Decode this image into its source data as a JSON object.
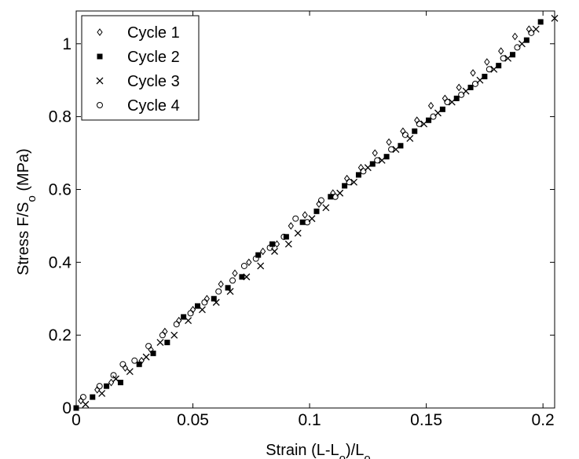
{
  "chart_data": {
    "type": "scatter",
    "xlabel": "Strain (L-L",
    "xlabel_sub1": "o",
    "xlabel_mid": ")/L",
    "xlabel_sub2": "o",
    "ylabel": "Stress F/S",
    "ylabel_sub": "o",
    "ylabel_unit": " (MPa)",
    "xlim": [
      0,
      0.205
    ],
    "ylim": [
      0,
      1.09
    ],
    "x_ticks": [
      0,
      0.05,
      0.1,
      0.15,
      0.2
    ],
    "x_tick_labels": [
      "0",
      "0.05",
      "0.1",
      "0.15",
      "0.2"
    ],
    "y_ticks": [
      0,
      0.2,
      0.4,
      0.6,
      0.8,
      1
    ],
    "y_tick_labels": [
      "0",
      "0.2",
      "0.4",
      "0.6",
      "0.8",
      "1"
    ],
    "grid": false,
    "legend_position": "top-left",
    "series": [
      {
        "name": "Cycle 1",
        "marker": "diamond-open",
        "points": [
          [
            0.002,
            0.02
          ],
          [
            0.009,
            0.05
          ],
          [
            0.015,
            0.07
          ],
          [
            0.021,
            0.11
          ],
          [
            0.028,
            0.13
          ],
          [
            0.032,
            0.16
          ],
          [
            0.038,
            0.21
          ],
          [
            0.044,
            0.24
          ],
          [
            0.05,
            0.27
          ],
          [
            0.056,
            0.3
          ],
          [
            0.062,
            0.34
          ],
          [
            0.068,
            0.37
          ],
          [
            0.074,
            0.4
          ],
          [
            0.08,
            0.43
          ],
          [
            0.086,
            0.45
          ],
          [
            0.092,
            0.5
          ],
          [
            0.098,
            0.53
          ],
          [
            0.104,
            0.56
          ],
          [
            0.11,
            0.59
          ],
          [
            0.116,
            0.63
          ],
          [
            0.122,
            0.66
          ],
          [
            0.128,
            0.7
          ],
          [
            0.134,
            0.73
          ],
          [
            0.14,
            0.76
          ],
          [
            0.146,
            0.79
          ],
          [
            0.152,
            0.83
          ],
          [
            0.158,
            0.85
          ],
          [
            0.164,
            0.88
          ],
          [
            0.17,
            0.92
          ],
          [
            0.176,
            0.95
          ],
          [
            0.182,
            0.98
          ],
          [
            0.188,
            1.02
          ],
          [
            0.194,
            1.04
          ]
        ]
      },
      {
        "name": "Cycle 2",
        "marker": "square-filled",
        "points": [
          [
            0,
            0
          ],
          [
            0.007,
            0.03
          ],
          [
            0.013,
            0.06
          ],
          [
            0.019,
            0.07
          ],
          [
            0.027,
            0.12
          ],
          [
            0.033,
            0.15
          ],
          [
            0.039,
            0.18
          ],
          [
            0.046,
            0.25
          ],
          [
            0.052,
            0.28
          ],
          [
            0.059,
            0.3
          ],
          [
            0.065,
            0.33
          ],
          [
            0.071,
            0.36
          ],
          [
            0.078,
            0.42
          ],
          [
            0.084,
            0.45
          ],
          [
            0.09,
            0.47
          ],
          [
            0.097,
            0.51
          ],
          [
            0.103,
            0.54
          ],
          [
            0.109,
            0.58
          ],
          [
            0.115,
            0.61
          ],
          [
            0.121,
            0.64
          ],
          [
            0.127,
            0.67
          ],
          [
            0.133,
            0.69
          ],
          [
            0.139,
            0.72
          ],
          [
            0.145,
            0.76
          ],
          [
            0.151,
            0.79
          ],
          [
            0.157,
            0.82
          ],
          [
            0.163,
            0.85
          ],
          [
            0.169,
            0.88
          ],
          [
            0.175,
            0.91
          ],
          [
            0.181,
            0.94
          ],
          [
            0.187,
            0.97
          ],
          [
            0.193,
            1.01
          ],
          [
            0.199,
            1.06
          ]
        ]
      },
      {
        "name": "Cycle 3",
        "marker": "x",
        "points": [
          [
            0.004,
            0.01
          ],
          [
            0.011,
            0.04
          ],
          [
            0.017,
            0.08
          ],
          [
            0.023,
            0.1
          ],
          [
            0.03,
            0.14
          ],
          [
            0.036,
            0.18
          ],
          [
            0.042,
            0.2
          ],
          [
            0.048,
            0.24
          ],
          [
            0.054,
            0.27
          ],
          [
            0.06,
            0.29
          ],
          [
            0.066,
            0.32
          ],
          [
            0.073,
            0.36
          ],
          [
            0.079,
            0.39
          ],
          [
            0.085,
            0.43
          ],
          [
            0.091,
            0.45
          ],
          [
            0.095,
            0.48
          ],
          [
            0.101,
            0.52
          ],
          [
            0.107,
            0.55
          ],
          [
            0.113,
            0.59
          ],
          [
            0.119,
            0.62
          ],
          [
            0.125,
            0.66
          ],
          [
            0.131,
            0.68
          ],
          [
            0.137,
            0.71
          ],
          [
            0.143,
            0.74
          ],
          [
            0.149,
            0.78
          ],
          [
            0.155,
            0.81
          ],
          [
            0.161,
            0.84
          ],
          [
            0.167,
            0.87
          ],
          [
            0.173,
            0.9
          ],
          [
            0.179,
            0.93
          ],
          [
            0.185,
            0.96
          ],
          [
            0.191,
            1.0
          ],
          [
            0.197,
            1.04
          ],
          [
            0.205,
            1.07
          ]
        ]
      },
      {
        "name": "Cycle 4",
        "marker": "circle-open",
        "points": [
          [
            0.003,
            0.03
          ],
          [
            0.01,
            0.06
          ],
          [
            0.016,
            0.09
          ],
          [
            0.02,
            0.12
          ],
          [
            0.025,
            0.13
          ],
          [
            0.031,
            0.17
          ],
          [
            0.037,
            0.2
          ],
          [
            0.043,
            0.23
          ],
          [
            0.049,
            0.26
          ],
          [
            0.055,
            0.29
          ],
          [
            0.061,
            0.32
          ],
          [
            0.067,
            0.35
          ],
          [
            0.072,
            0.39
          ],
          [
            0.077,
            0.41
          ],
          [
            0.083,
            0.44
          ],
          [
            0.089,
            0.47
          ],
          [
            0.094,
            0.52
          ],
          [
            0.099,
            0.51
          ],
          [
            0.105,
            0.57
          ],
          [
            0.111,
            0.58
          ],
          [
            0.117,
            0.62
          ],
          [
            0.123,
            0.65
          ],
          [
            0.129,
            0.68
          ],
          [
            0.135,
            0.71
          ],
          [
            0.141,
            0.75
          ],
          [
            0.147,
            0.78
          ],
          [
            0.153,
            0.8
          ],
          [
            0.159,
            0.84
          ],
          [
            0.165,
            0.86
          ],
          [
            0.171,
            0.89
          ],
          [
            0.177,
            0.93
          ],
          [
            0.183,
            0.96
          ],
          [
            0.189,
            0.99
          ],
          [
            0.195,
            1.03
          ]
        ]
      }
    ]
  }
}
